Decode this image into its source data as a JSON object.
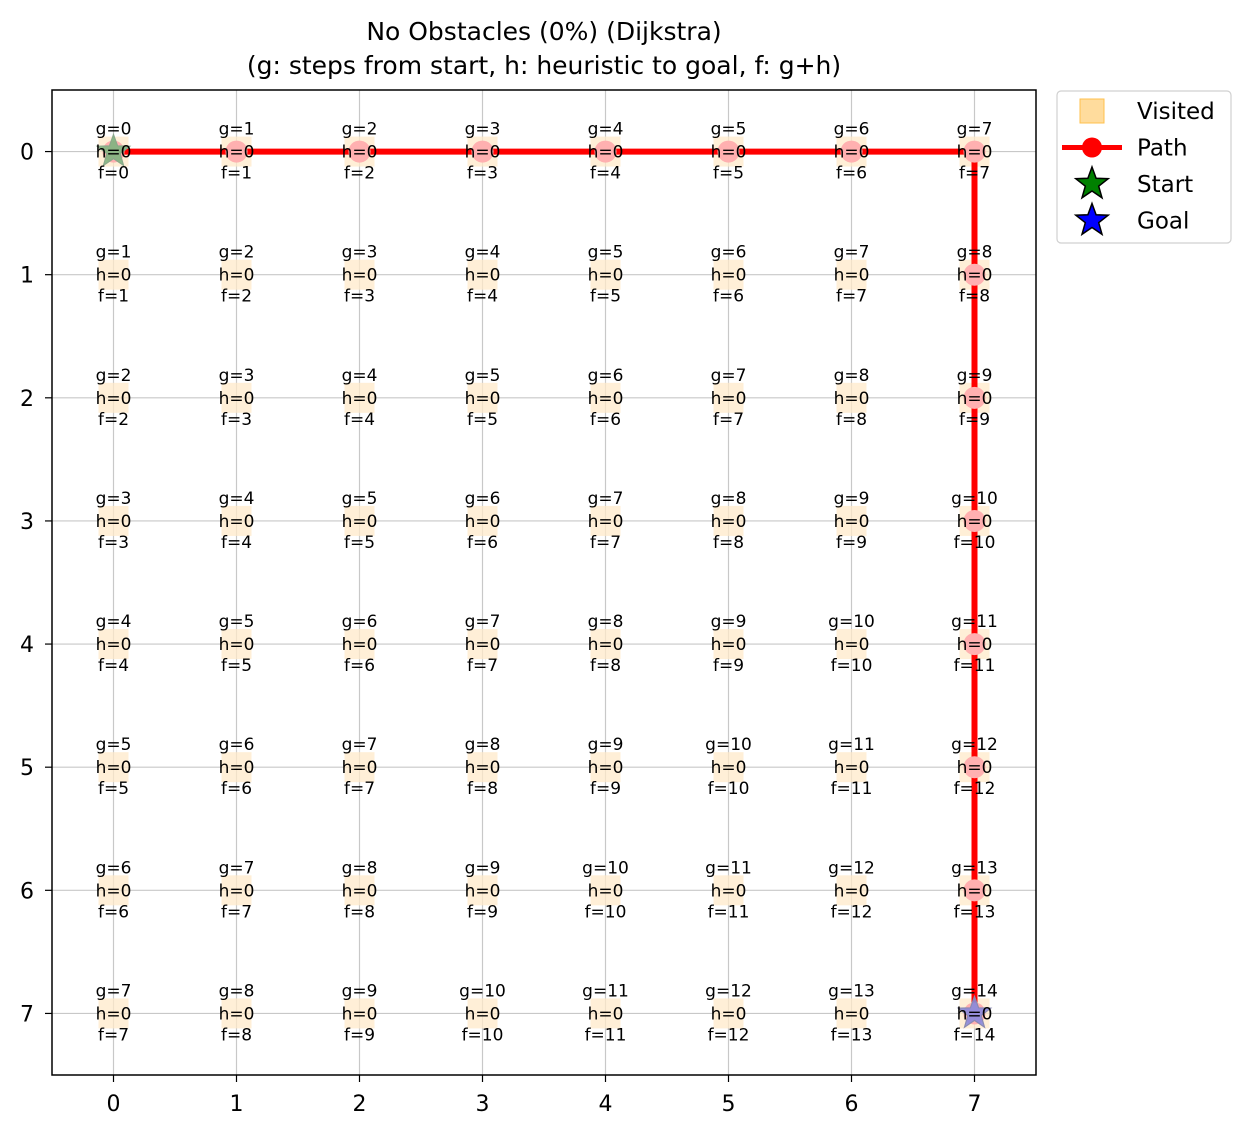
{
  "chart_data": {
    "type": "heatmap",
    "title_line1": "No Obstacles (0%) (Dijkstra)",
    "title_line2": "(g: steps from start, h: heuristic to goal, f: g+h)",
    "xlabel": "",
    "ylabel": "",
    "x_ticks": [
      "0",
      "1",
      "2",
      "3",
      "4",
      "5",
      "6",
      "7"
    ],
    "y_ticks": [
      "0",
      "1",
      "2",
      "3",
      "4",
      "5",
      "6",
      "7"
    ],
    "xlim": [
      -0.5,
      7.5
    ],
    "ylim": [
      7.5,
      -0.5
    ],
    "grid": true,
    "legend_position": "outside upper right",
    "legend": [
      {
        "label": "Visited",
        "marker": "square",
        "color": "#ffc04d"
      },
      {
        "label": "Path",
        "marker": "line-circle",
        "color": "#ff0000"
      },
      {
        "label": "Start",
        "marker": "star",
        "color": "#008000"
      },
      {
        "label": "Goal",
        "marker": "star",
        "color": "#0000ff"
      }
    ],
    "start": [
      0,
      0
    ],
    "goal": [
      7,
      7
    ],
    "path": [
      [
        0,
        0
      ],
      [
        1,
        0
      ],
      [
        2,
        0
      ],
      [
        3,
        0
      ],
      [
        4,
        0
      ],
      [
        5,
        0
      ],
      [
        6,
        0
      ],
      [
        7,
        0
      ],
      [
        7,
        1
      ],
      [
        7,
        2
      ],
      [
        7,
        3
      ],
      [
        7,
        4
      ],
      [
        7,
        5
      ],
      [
        7,
        6
      ],
      [
        7,
        7
      ]
    ],
    "cells": [
      {
        "x": 0,
        "y": 0,
        "g": 0,
        "h": 0,
        "f": 0
      },
      {
        "x": 1,
        "y": 0,
        "g": 1,
        "h": 0,
        "f": 1
      },
      {
        "x": 2,
        "y": 0,
        "g": 2,
        "h": 0,
        "f": 2
      },
      {
        "x": 3,
        "y": 0,
        "g": 3,
        "h": 0,
        "f": 3
      },
      {
        "x": 4,
        "y": 0,
        "g": 4,
        "h": 0,
        "f": 4
      },
      {
        "x": 5,
        "y": 0,
        "g": 5,
        "h": 0,
        "f": 5
      },
      {
        "x": 6,
        "y": 0,
        "g": 6,
        "h": 0,
        "f": 6
      },
      {
        "x": 7,
        "y": 0,
        "g": 7,
        "h": 0,
        "f": 7
      },
      {
        "x": 0,
        "y": 1,
        "g": 1,
        "h": 0,
        "f": 1
      },
      {
        "x": 1,
        "y": 1,
        "g": 2,
        "h": 0,
        "f": 2
      },
      {
        "x": 2,
        "y": 1,
        "g": 3,
        "h": 0,
        "f": 3
      },
      {
        "x": 3,
        "y": 1,
        "g": 4,
        "h": 0,
        "f": 4
      },
      {
        "x": 4,
        "y": 1,
        "g": 5,
        "h": 0,
        "f": 5
      },
      {
        "x": 5,
        "y": 1,
        "g": 6,
        "h": 0,
        "f": 6
      },
      {
        "x": 6,
        "y": 1,
        "g": 7,
        "h": 0,
        "f": 7
      },
      {
        "x": 7,
        "y": 1,
        "g": 8,
        "h": 0,
        "f": 8
      },
      {
        "x": 0,
        "y": 2,
        "g": 2,
        "h": 0,
        "f": 2
      },
      {
        "x": 1,
        "y": 2,
        "g": 3,
        "h": 0,
        "f": 3
      },
      {
        "x": 2,
        "y": 2,
        "g": 4,
        "h": 0,
        "f": 4
      },
      {
        "x": 3,
        "y": 2,
        "g": 5,
        "h": 0,
        "f": 5
      },
      {
        "x": 4,
        "y": 2,
        "g": 6,
        "h": 0,
        "f": 6
      },
      {
        "x": 5,
        "y": 2,
        "g": 7,
        "h": 0,
        "f": 7
      },
      {
        "x": 6,
        "y": 2,
        "g": 8,
        "h": 0,
        "f": 8
      },
      {
        "x": 7,
        "y": 2,
        "g": 9,
        "h": 0,
        "f": 9
      },
      {
        "x": 0,
        "y": 3,
        "g": 3,
        "h": 0,
        "f": 3
      },
      {
        "x": 1,
        "y": 3,
        "g": 4,
        "h": 0,
        "f": 4
      },
      {
        "x": 2,
        "y": 3,
        "g": 5,
        "h": 0,
        "f": 5
      },
      {
        "x": 3,
        "y": 3,
        "g": 6,
        "h": 0,
        "f": 6
      },
      {
        "x": 4,
        "y": 3,
        "g": 7,
        "h": 0,
        "f": 7
      },
      {
        "x": 5,
        "y": 3,
        "g": 8,
        "h": 0,
        "f": 8
      },
      {
        "x": 6,
        "y": 3,
        "g": 9,
        "h": 0,
        "f": 9
      },
      {
        "x": 7,
        "y": 3,
        "g": 10,
        "h": 0,
        "f": 10
      },
      {
        "x": 0,
        "y": 4,
        "g": 4,
        "h": 0,
        "f": 4
      },
      {
        "x": 1,
        "y": 4,
        "g": 5,
        "h": 0,
        "f": 5
      },
      {
        "x": 2,
        "y": 4,
        "g": 6,
        "h": 0,
        "f": 6
      },
      {
        "x": 3,
        "y": 4,
        "g": 7,
        "h": 0,
        "f": 7
      },
      {
        "x": 4,
        "y": 4,
        "g": 8,
        "h": 0,
        "f": 8
      },
      {
        "x": 5,
        "y": 4,
        "g": 9,
        "h": 0,
        "f": 9
      },
      {
        "x": 6,
        "y": 4,
        "g": 10,
        "h": 0,
        "f": 10
      },
      {
        "x": 7,
        "y": 4,
        "g": 11,
        "h": 0,
        "f": 11
      },
      {
        "x": 0,
        "y": 5,
        "g": 5,
        "h": 0,
        "f": 5
      },
      {
        "x": 1,
        "y": 5,
        "g": 6,
        "h": 0,
        "f": 6
      },
      {
        "x": 2,
        "y": 5,
        "g": 7,
        "h": 0,
        "f": 7
      },
      {
        "x": 3,
        "y": 5,
        "g": 8,
        "h": 0,
        "f": 8
      },
      {
        "x": 4,
        "y": 5,
        "g": 9,
        "h": 0,
        "f": 9
      },
      {
        "x": 5,
        "y": 5,
        "g": 10,
        "h": 0,
        "f": 10
      },
      {
        "x": 6,
        "y": 5,
        "g": 11,
        "h": 0,
        "f": 11
      },
      {
        "x": 7,
        "y": 5,
        "g": 12,
        "h": 0,
        "f": 12
      },
      {
        "x": 0,
        "y": 6,
        "g": 6,
        "h": 0,
        "f": 6
      },
      {
        "x": 1,
        "y": 6,
        "g": 7,
        "h": 0,
        "f": 7
      },
      {
        "x": 2,
        "y": 6,
        "g": 8,
        "h": 0,
        "f": 8
      },
      {
        "x": 3,
        "y": 6,
        "g": 9,
        "h": 0,
        "f": 9
      },
      {
        "x": 4,
        "y": 6,
        "g": 10,
        "h": 0,
        "f": 10
      },
      {
        "x": 5,
        "y": 6,
        "g": 11,
        "h": 0,
        "f": 11
      },
      {
        "x": 6,
        "y": 6,
        "g": 12,
        "h": 0,
        "f": 12
      },
      {
        "x": 7,
        "y": 6,
        "g": 13,
        "h": 0,
        "f": 13
      },
      {
        "x": 0,
        "y": 7,
        "g": 7,
        "h": 0,
        "f": 7
      },
      {
        "x": 1,
        "y": 7,
        "g": 8,
        "h": 0,
        "f": 8
      },
      {
        "x": 2,
        "y": 7,
        "g": 9,
        "h": 0,
        "f": 9
      },
      {
        "x": 3,
        "y": 7,
        "g": 10,
        "h": 0,
        "f": 10
      },
      {
        "x": 4,
        "y": 7,
        "g": 11,
        "h": 0,
        "f": 11
      },
      {
        "x": 5,
        "y": 7,
        "g": 12,
        "h": 0,
        "f": 12
      },
      {
        "x": 6,
        "y": 7,
        "g": 13,
        "h": 0,
        "f": 13
      },
      {
        "x": 7,
        "y": 7,
        "g": 14,
        "h": 0,
        "f": 14
      }
    ]
  }
}
